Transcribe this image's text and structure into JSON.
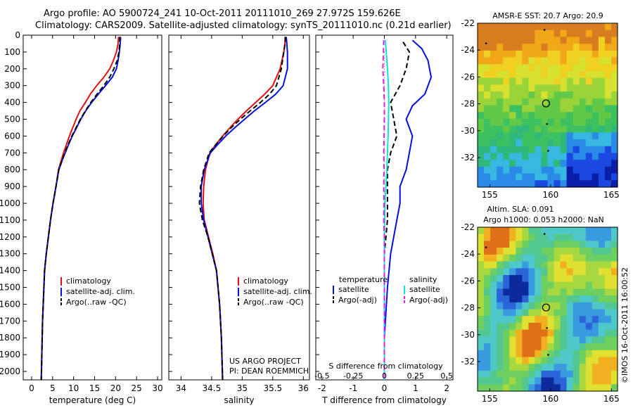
{
  "header": {
    "line1": "Argo profile: AO 5900724_241 10-Oct-2011 20111010_269 27.972S 159.626E",
    "line2": "Climatology: CARS2009. Satellite-adjusted climatology: synTS_20111010.nc (0.21d earlier)"
  },
  "right_panel": {
    "sst_title": "AMSR-E SST: 20.7 Argo: 20.9",
    "sla_title1": "Altim. SLA: 0.091",
    "sla_title2": "Argo h1000: 0.053 h2000: NaN",
    "stamp": "©IMOS 16-Oct-2011 16:00:52"
  },
  "credit": {
    "line1": "US ARGO PROJECT",
    "line2": "PI: DEAN ROEMMICH"
  },
  "colors": {
    "climatology": "#e01010",
    "satellite": "#0010e0",
    "argo": "#000000",
    "salinity_sat": "#10e0e0",
    "salinity_argo": "#e020e0"
  },
  "chart_data": [
    {
      "type": "line",
      "xlabel": "temperature (deg C)",
      "ylabel": "",
      "xlim": [
        -2,
        31
      ],
      "ylim": [
        2050,
        0
      ],
      "xticks": [
        0,
        5,
        10,
        15,
        20,
        25,
        30
      ],
      "yticks": [
        0,
        100,
        200,
        300,
        400,
        500,
        600,
        700,
        800,
        900,
        1000,
        1100,
        1200,
        1300,
        1400,
        1500,
        1600,
        1700,
        1800,
        1900,
        2000
      ],
      "legend": [
        "climatology",
        "satellite-adj. clim.",
        "Argo(..raw -QC)"
      ],
      "series": [
        {
          "name": "climatology",
          "style": "solid",
          "color": "#e01010",
          "x": [
            20.7,
            20.6,
            20.2,
            19.5,
            18.6,
            17.2,
            15.5,
            14.0,
            12.8,
            11.5,
            10.6,
            9.8,
            9.0,
            8.3,
            7.6,
            7.0,
            6.4,
            5.8,
            5.1,
            4.5,
            4.0,
            3.5,
            3.1,
            2.6,
            2.3
          ],
          "y": [
            10,
            50,
            100,
            150,
            200,
            250,
            300,
            350,
            400,
            450,
            500,
            550,
            600,
            650,
            700,
            750,
            800,
            900,
            1000,
            1100,
            1200,
            1300,
            1400,
            1700,
            2050
          ]
        },
        {
          "name": "satellite-adj. clim.",
          "style": "solid",
          "color": "#0010e0",
          "x": [
            21.2,
            21.1,
            20.9,
            20.6,
            20.2,
            19.2,
            17.6,
            15.9,
            14.3,
            12.9,
            11.7,
            10.7,
            9.7,
            8.8,
            8.0,
            7.2,
            6.5,
            5.8,
            5.1,
            4.5,
            4.0,
            3.5,
            3.1,
            2.6,
            2.3
          ],
          "y": [
            10,
            50,
            100,
            150,
            200,
            250,
            300,
            350,
            400,
            450,
            500,
            550,
            600,
            650,
            700,
            750,
            800,
            900,
            1000,
            1100,
            1200,
            1300,
            1400,
            1700,
            2050
          ]
        },
        {
          "name": "Argo(..raw -QC)",
          "style": "dash",
          "color": "#000000",
          "x": [
            21.0,
            21.0,
            20.8,
            20.4,
            19.6,
            18.6,
            17.2,
            15.6,
            14.1,
            12.8,
            11.6,
            10.6,
            9.6,
            8.7,
            7.9,
            7.2,
            6.5,
            5.8,
            5.1,
            4.5,
            4.0,
            3.5,
            3.1,
            2.6,
            2.3
          ],
          "y": [
            10,
            50,
            100,
            150,
            200,
            250,
            300,
            350,
            400,
            450,
            500,
            550,
            600,
            650,
            700,
            750,
            800,
            900,
            1000,
            1100,
            1200,
            1300,
            1400,
            1700,
            2050
          ]
        }
      ]
    },
    {
      "type": "line",
      "xlabel": "salinity",
      "xlim": [
        33.8,
        36.1
      ],
      "ylim": [
        2050,
        0
      ],
      "xticks": [
        34,
        34.5,
        35,
        35.5,
        36
      ],
      "legend": [
        "climatology",
        "satellite-adj. clim.",
        "Argo(..raw -QC)"
      ],
      "series": [
        {
          "name": "climatology",
          "style": "solid",
          "color": "#e01010",
          "x": [
            35.7,
            35.7,
            35.68,
            35.62,
            35.5,
            35.37,
            35.22,
            35.07,
            34.93,
            34.8,
            34.68,
            34.57,
            34.47,
            34.4,
            34.37,
            34.36,
            34.38,
            34.45,
            34.52,
            34.58,
            34.63,
            34.66,
            34.68
          ],
          "y": [
            10,
            50,
            100,
            200,
            300,
            350,
            400,
            450,
            500,
            550,
            600,
            650,
            700,
            800,
            900,
            1000,
            1100,
            1200,
            1300,
            1400,
            1600,
            1800,
            2050
          ]
        },
        {
          "name": "satellite-adj. clim.",
          "style": "solid",
          "color": "#0010e0",
          "x": [
            35.72,
            35.73,
            35.74,
            35.74,
            35.67,
            35.55,
            35.38,
            35.2,
            35.04,
            34.88,
            34.73,
            34.6,
            34.48,
            34.38,
            34.33,
            34.33,
            34.37,
            34.44,
            34.51,
            34.58,
            34.63,
            34.66,
            34.68
          ],
          "y": [
            10,
            50,
            100,
            200,
            300,
            350,
            400,
            450,
            500,
            550,
            600,
            650,
            700,
            800,
            900,
            1000,
            1100,
            1200,
            1300,
            1400,
            1600,
            1800,
            2050
          ]
        },
        {
          "name": "Argo(..raw -QC)",
          "style": "dash",
          "color": "#000000",
          "x": [
            35.71,
            35.7,
            35.68,
            35.64,
            35.56,
            35.45,
            35.3,
            35.13,
            34.97,
            34.82,
            34.69,
            34.57,
            34.46,
            34.37,
            34.32,
            34.3,
            34.35,
            34.44,
            34.51,
            34.58,
            34.63,
            34.66,
            34.68
          ],
          "y": [
            10,
            50,
            100,
            200,
            300,
            350,
            400,
            450,
            500,
            550,
            600,
            650,
            700,
            800,
            900,
            1000,
            1100,
            1200,
            1300,
            1400,
            1600,
            1800,
            2050
          ]
        }
      ]
    },
    {
      "type": "line",
      "xlabel": "T difference from climatology",
      "xlabel_top": "S difference from climatology",
      "xlim": [
        -2.2,
        2.2
      ],
      "ylim": [
        2050,
        0
      ],
      "xticks": [
        -2,
        -1,
        0,
        1,
        2
      ],
      "xticks_top": [
        "-0.5",
        "-0.25",
        "0",
        "0.25",
        "0.5"
      ],
      "legend_groups": {
        "temperature": "temperature",
        "salinity": "salinity"
      },
      "legend": [
        "satellite",
        "Argo(-adj)",
        "satellite",
        "Argo(-adj)"
      ],
      "series": [
        {
          "name": "temperature satellite",
          "style": "solid",
          "color": "#0010e0",
          "x": [
            0.9,
            1.2,
            1.4,
            1.5,
            1.3,
            0.9,
            0.7,
            0.9,
            0.8,
            0.7,
            0.5,
            0.5,
            0.4,
            0.3,
            0.2,
            0.1,
            0.0,
            0.0
          ],
          "y": [
            30,
            80,
            150,
            250,
            350,
            420,
            500,
            600,
            700,
            800,
            900,
            1000,
            1100,
            1200,
            1300,
            1500,
            1800,
            2050
          ]
        },
        {
          "name": "temperature Argo(-adj)",
          "style": "dash",
          "color": "#000000",
          "x": [
            0.6,
            0.8,
            0.7,
            0.5,
            0.2,
            0.3,
            0.4,
            0.2,
            0.1,
            0.1,
            0.1,
            0.0,
            0.0,
            0.0
          ],
          "y": [
            40,
            100,
            200,
            300,
            400,
            500,
            600,
            700,
            800,
            900,
            1100,
            1300,
            1600,
            2050
          ]
        },
        {
          "name": "salinity satellite",
          "style": "solid",
          "color": "#10e0e0",
          "x": [
            0.03,
            0.06,
            0.1,
            0.13,
            0.14,
            0.13,
            0.12,
            0.1,
            0.08,
            0.05,
            0.02,
            0.0,
            0.0,
            0.0
          ],
          "y": [
            30,
            100,
            200,
            300,
            400,
            500,
            600,
            700,
            800,
            900,
            1000,
            1200,
            1500,
            2050
          ]
        },
        {
          "name": "salinity Argo(-adj)",
          "style": "dash",
          "color": "#e020e0",
          "x": [
            -0.02,
            -0.03,
            -0.05,
            -0.02,
            0.0,
            0.0,
            -0.01,
            -0.02,
            -0.01,
            -0.02,
            -0.01,
            -0.02,
            0.0,
            0.0,
            0.0
          ],
          "y": [
            30,
            100,
            200,
            300,
            400,
            500,
            600,
            700,
            800,
            900,
            1000,
            1100,
            1200,
            1500,
            2050
          ]
        }
      ]
    },
    {
      "type": "heatmap",
      "title": "AMSR-E SST: 20.7 Argo: 20.9",
      "xlim": [
        154,
        165.5
      ],
      "ylim": [
        -34.2,
        -22
      ],
      "xticks": [
        155,
        160,
        165
      ],
      "yticks": [
        -22,
        -24,
        -26,
        -28,
        -30,
        -32
      ],
      "marker": {
        "lon": 159.626,
        "lat": -27.972
      }
    },
    {
      "type": "heatmap",
      "title": "Altim. SLA: 0.091",
      "subtitle": "Argo h1000: 0.053 h2000: NaN",
      "xlim": [
        154,
        165.5
      ],
      "ylim": [
        -34.2,
        -22
      ],
      "xticks": [
        155,
        160,
        165
      ],
      "yticks": [
        -22,
        -24,
        -26,
        -28,
        -30,
        -32
      ],
      "marker": {
        "lon": 159.626,
        "lat": -27.972
      }
    }
  ]
}
